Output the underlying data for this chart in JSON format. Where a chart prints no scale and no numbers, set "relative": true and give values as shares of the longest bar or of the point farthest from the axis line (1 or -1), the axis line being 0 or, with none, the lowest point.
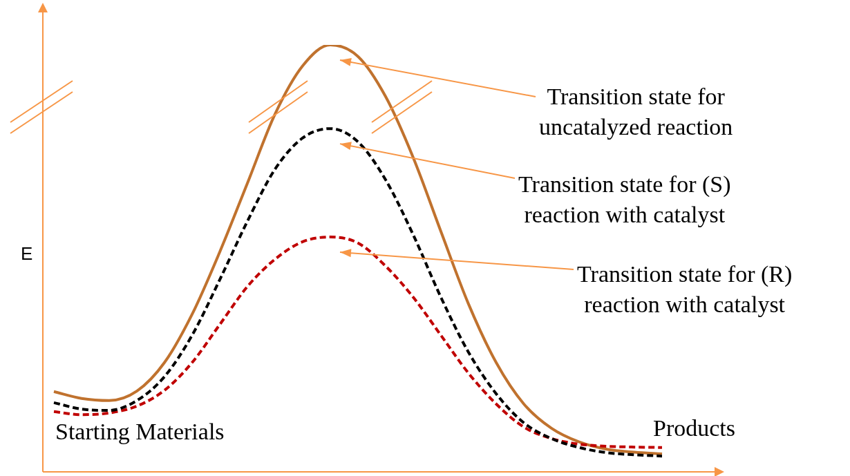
{
  "chart_data": {
    "type": "line",
    "relative": true,
    "ylabel": "E",
    "grid": false,
    "legend": false,
    "marker": "none",
    "categories": [
      null,
      null,
      null,
      null,
      null,
      null,
      null,
      null,
      null,
      null,
      null,
      null,
      null,
      null,
      null,
      null,
      null,
      null,
      null,
      null,
      null,
      null,
      null
    ],
    "series": [
      {
        "color": "#c0722e",
        "line_style": "solid",
        "values": [
          0.188,
          0.172,
          0.167,
          0.189,
          0.256,
          0.369,
          0.515,
          0.676,
          0.838,
          0.951,
          1,
          0.973,
          0.879,
          0.736,
          0.563,
          0.393,
          0.256,
          0.159,
          0.102,
          0.07,
          0.053,
          0.046,
          0.042
        ]
      },
      {
        "color": "#000000",
        "line_style": "dashed",
        "values": [
          0.162,
          0.147,
          0.144,
          0.167,
          0.223,
          0.32,
          0.45,
          0.587,
          0.709,
          0.782,
          0.804,
          0.773,
          0.684,
          0.555,
          0.409,
          0.28,
          0.183,
          0.115,
          0.078,
          0.057,
          0.045,
          0.04,
          0.037
        ]
      },
      {
        "color": "#c00000",
        "line_style": "dashed",
        "values": [
          0.141,
          0.134,
          0.138,
          0.154,
          0.191,
          0.256,
          0.345,
          0.434,
          0.498,
          0.539,
          0.55,
          0.536,
          0.482,
          0.409,
          0.32,
          0.231,
          0.159,
          0.105,
          0.078,
          0.065,
          0.06,
          0.058,
          0.057
        ]
      }
    ],
    "annotations": [
      "Transition state for\nuncatalyzed reaction",
      "Transition state for (S)\nreaction with catalyst",
      "Transition state for (R)\nreaction with catalyst",
      "Starting Materials",
      "Products"
    ]
  }
}
